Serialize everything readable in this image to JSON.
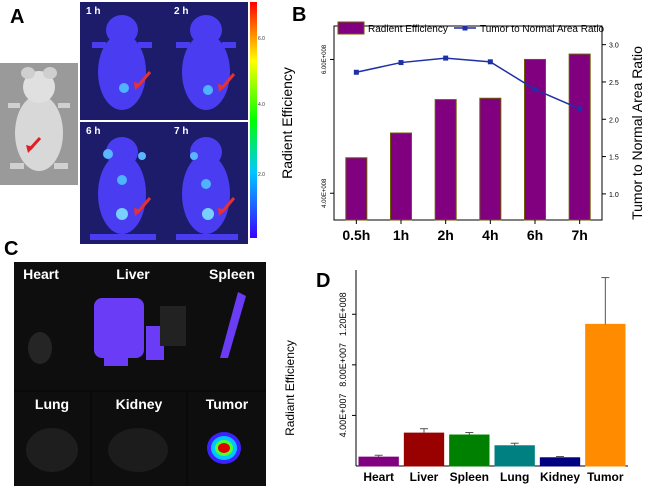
{
  "panels": {
    "a": {
      "letter": "A",
      "time_labels": [
        "1 h",
        "2 h",
        "6 h",
        "7 h"
      ],
      "colorbar_ticks": [
        "6.0",
        "4.0",
        "2.0"
      ]
    },
    "b": {
      "letter": "B"
    },
    "c": {
      "letter": "C",
      "organs": [
        "Heart",
        "Liver",
        "Spleen",
        "Lung",
        "Kidney",
        "Tumor"
      ]
    },
    "d": {
      "letter": "D"
    }
  },
  "colors": {
    "bar_purple": "#800080",
    "line_blue": "#1f2fa8",
    "heart": "#800080",
    "liver": "#990000",
    "spleen": "#008000",
    "lung": "#008080",
    "kidney": "#000080",
    "tumor": "#ff8c00",
    "organ_signal": "#6a3cf5",
    "tumor_core": "#e00000"
  },
  "chart_data": [
    {
      "type": "bar",
      "panel": "B",
      "categories": [
        "0.5h",
        "1h",
        "2h",
        "4h",
        "6h",
        "7h"
      ],
      "series": [
        {
          "name": "Radient Efficiency",
          "axis": "left",
          "values": [
            453000000.0,
            490000000.0,
            540000000.0,
            542000000.0,
            600000000.0,
            608000000.0
          ]
        },
        {
          "name": "Tumor to Normal Area Ratio",
          "type": "line",
          "axis": "right",
          "values": [
            2.63,
            2.76,
            2.82,
            2.77,
            2.4,
            2.14
          ]
        }
      ],
      "ylabel": "Radient Efficiency",
      "y2label": "Tumor to Normal Area Ratio",
      "ylim": [
        360000000.0,
        650000000.0
      ],
      "y2lim": [
        0.65,
        3.25
      ],
      "yticks": [
        400000000.0,
        600000000.0
      ],
      "ytick_labels": [
        "4.00E+008",
        "6.00E+008"
      ],
      "y2ticks": [
        1.0,
        1.5,
        2.0,
        2.5,
        3.0
      ],
      "y2tick_labels": [
        "1.0",
        "1.5",
        "2.0",
        "2.5",
        "3.0"
      ],
      "legend": [
        "Radient Efficiency",
        "Tumor to Normal Area Ratio"
      ],
      "legend_placement": "top"
    },
    {
      "type": "bar",
      "panel": "D",
      "categories": [
        "Heart",
        "Liver",
        "Spleen",
        "Lung",
        "Kidney",
        "Tumor"
      ],
      "values": [
        7000000.0,
        26000000.0,
        24500000.0,
        16000000.0,
        6500000.0,
        112000000.0
      ],
      "errors": [
        1500000.0,
        3500000.0,
        2000000.0,
        2000000.0,
        1000000.0,
        37000000.0
      ],
      "ylabel": "Radiant Efficiency",
      "ylim": [
        0,
        155000000.0
      ],
      "yticks": [
        40000000.0,
        80000000.0,
        120000000.0
      ],
      "ytick_labels": [
        "4.00E+007",
        "8.00E+007",
        "1.20E+008"
      ]
    }
  ]
}
